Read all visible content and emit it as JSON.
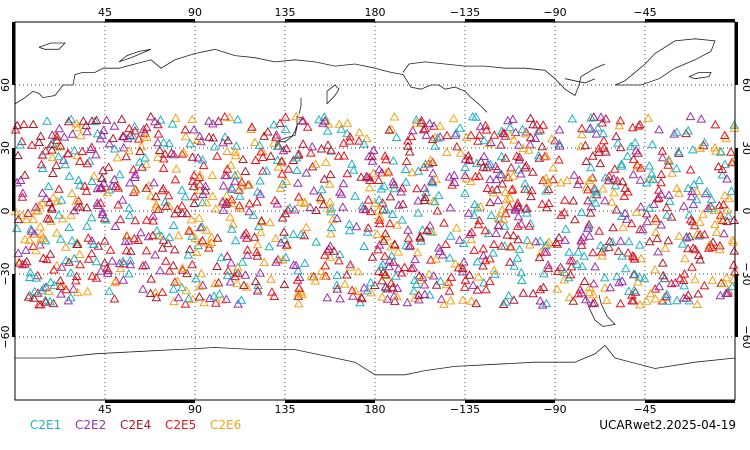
{
  "map": {
    "top_ticks": [
      "45",
      "90",
      "135",
      "180",
      "−135",
      "−90",
      "−45"
    ],
    "bottom_ticks": [
      "45",
      "90",
      "135",
      "180",
      "−135",
      "−90",
      "−45"
    ],
    "left_ticks": [
      "60",
      "30",
      "0",
      "−30",
      "−60"
    ],
    "right_ticks": [
      "60",
      "30",
      "0",
      "−30",
      "−60"
    ],
    "longitudes": [
      45,
      90,
      135,
      180,
      -135,
      -90,
      -45
    ],
    "latitudes": [
      60,
      30,
      0,
      -30,
      -60
    ],
    "lon_range": [
      0,
      360
    ],
    "lat_range": [
      -90,
      90
    ],
    "projection": "cylindrical equidistant",
    "grid": "dotted",
    "marker": "open triangle",
    "marker_lat_range": [
      -45,
      45
    ]
  },
  "legend": [
    {
      "label": "C2E1",
      "color": "#1fb1c4"
    },
    {
      "label": "C2E2",
      "color": "#9b2fae"
    },
    {
      "label": "C2E4",
      "color": "#b0192b"
    },
    {
      "label": "C2E5",
      "color": "#e8141b"
    },
    {
      "label": "C2E6",
      "color": "#f4a21a"
    }
  ],
  "footer": {
    "label": "UCARwet2.2025-04-19"
  }
}
